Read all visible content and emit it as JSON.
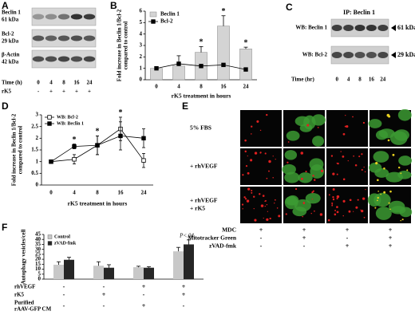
{
  "panel_labels": [
    "A",
    "B",
    "C",
    "D",
    "E",
    "F"
  ],
  "blot_a": {
    "rows": [
      {
        "name": "Beclin 1",
        "size": "61 kDa"
      },
      {
        "name": "Bcl-2",
        "size": "29 kDa"
      },
      {
        "name": "β-Actin",
        "size": "42 kDa"
      }
    ],
    "time_label": "Time (h)",
    "times": [
      "0",
      "4",
      "8",
      "16",
      "24"
    ],
    "treatment_label": "rK5",
    "treatment": [
      "-",
      "+",
      "+",
      "+",
      "+"
    ]
  },
  "blot_c": {
    "title": "IP: Beclin 1",
    "rows": [
      {
        "name": "WB: Beclin 1",
        "size": "61 kDa"
      },
      {
        "name": "WB: Bcl-2",
        "size": "29 kDa"
      }
    ],
    "time_label": "Time (hr)",
    "times": [
      "0",
      "4",
      "8",
      "16",
      "24"
    ]
  },
  "panel_e": {
    "rows": [
      [
        "5% FBS"
      ],
      [
        "+ rhVEGF"
      ],
      [
        "+ rhVEGF",
        "+ rK5"
      ]
    ],
    "conditions": [
      {
        "label": "MDC",
        "values": [
          "+",
          "+",
          "+",
          "+"
        ]
      },
      {
        "label": "Mitotracker Green",
        "values": [
          "-",
          "+",
          "-",
          "+"
        ]
      },
      {
        "label": "zVAD-fmk",
        "values": [
          "-",
          "-",
          "+",
          "+"
        ]
      }
    ]
  },
  "chart_data": [
    {
      "type": "bar_line",
      "y_label": [
        "Fold increase in Beclin 1/Bcl-2",
        "compared to control"
      ],
      "x_label": "rK5 treatment in hours",
      "categories": [
        "0",
        "4",
        "8",
        "16",
        "24"
      ],
      "series": [
        {
          "name": "Beclin 1",
          "kind": "bar",
          "color": "#d4d4d4",
          "values": [
            1,
            1.2,
            2.4,
            4.7,
            2.7
          ],
          "errors": [
            0.1,
            0.9,
            0.5,
            0.9,
            0.15
          ]
        },
        {
          "name": "Bcl-2",
          "kind": "line",
          "color": "#000000",
          "values": [
            1,
            1.4,
            1.2,
            1.3,
            0.9
          ]
        }
      ],
      "ylim": [
        0,
        6
      ],
      "yticks": [
        0,
        1,
        2,
        3,
        4,
        5,
        6
      ],
      "legend": "upper-left",
      "annotations": [
        {
          "text": "*",
          "at": "8"
        },
        {
          "text": "*",
          "at": "16"
        },
        {
          "text": "*",
          "at": "24"
        }
      ]
    },
    {
      "type": "line",
      "y_label": [
        "Fold increase in Beclin 1/Bcl-2",
        "compared to control"
      ],
      "x_label": "rK5 treatment in hours",
      "categories": [
        "0",
        "4",
        "8",
        "16",
        "24"
      ],
      "series": [
        {
          "name": "WB: Bcl-2",
          "marker": "open-square",
          "color": "#000000",
          "values": [
            1,
            1.1,
            1.7,
            2.4,
            1.05
          ],
          "errors": [
            0,
            0.2,
            0.4,
            0.5,
            0.3
          ]
        },
        {
          "name": "WB: Beclin 1",
          "marker": "filled-square",
          "color": "#000000",
          "values": [
            1,
            1.65,
            1.7,
            2.1,
            2.0
          ],
          "errors": [
            0,
            0.1,
            0.4,
            0.6,
            0.4
          ]
        }
      ],
      "ylim": [
        0,
        3
      ],
      "yticks": [
        0,
        0.5,
        1,
        1.5,
        2,
        2.5,
        3
      ],
      "legend": "upper-left",
      "annotations": [
        {
          "text": "*",
          "at": "4"
        },
        {
          "text": "*",
          "at": "8"
        },
        {
          "text": "*",
          "at": "16"
        }
      ]
    },
    {
      "type": "grouped_bar",
      "y_label": [
        "Autophagy vesicles/cell"
      ],
      "series": [
        {
          "name": "Control",
          "color": "#c8c8c8",
          "values": [
            14.5,
            13.5,
            12,
            28
          ],
          "errors": [
            3,
            4,
            1,
            4
          ]
        },
        {
          "name": "zVAD-fmk",
          "color": "#262626",
          "values": [
            19.5,
            11.5,
            11.5,
            35
          ],
          "errors": [
            2.5,
            3,
            1,
            4.5
          ]
        }
      ],
      "ylim": [
        0,
        45
      ],
      "yticks": [
        0,
        5,
        10,
        15,
        20,
        25,
        30,
        35,
        40,
        45
      ],
      "legend": "upper-left",
      "annotation": "P<.04",
      "conditions": [
        {
          "label": [
            "rhVEGF"
          ],
          "values": [
            "-",
            "-",
            "+",
            "+"
          ]
        },
        {
          "label": [
            "rK5"
          ],
          "values": [
            "-",
            "+",
            "-",
            "+"
          ]
        },
        {
          "label": [
            "Purified",
            "rAAV-GFP CM"
          ],
          "values": [
            "-",
            "-",
            "+",
            "-"
          ]
        }
      ]
    }
  ]
}
